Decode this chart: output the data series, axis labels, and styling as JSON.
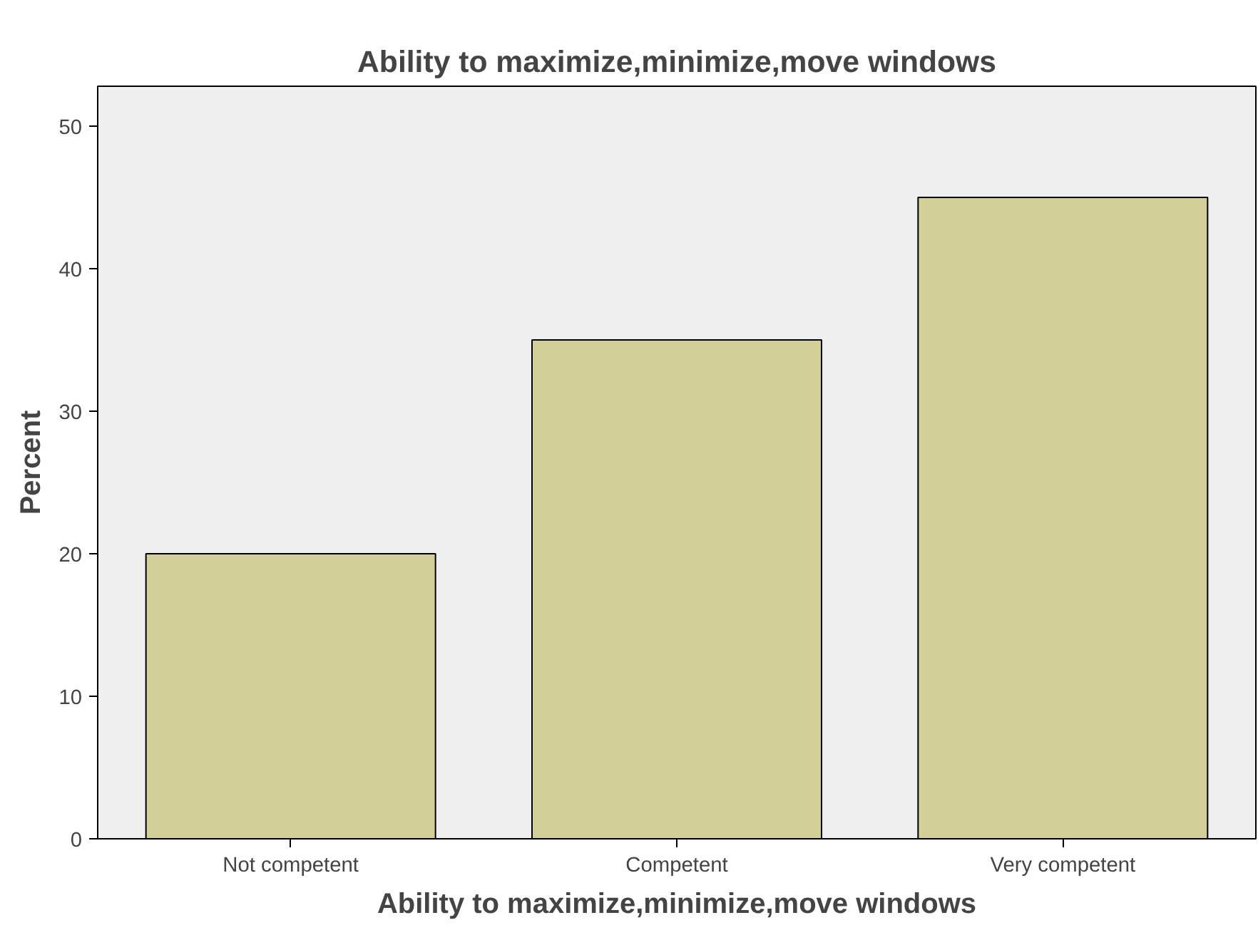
{
  "chart_data": {
    "type": "bar",
    "title": "Ability to maximize,minimize,move windows",
    "xlabel": "Ability to maximize,minimize,move windows",
    "ylabel": "Percent",
    "categories": [
      "Not competent",
      "Competent",
      "Very competent"
    ],
    "values": [
      20,
      35,
      45
    ],
    "color": "#d3cf98",
    "ylim": [
      0,
      52.8
    ],
    "yticks": [
      0,
      10,
      20,
      30,
      40,
      50
    ],
    "grid": false
  }
}
